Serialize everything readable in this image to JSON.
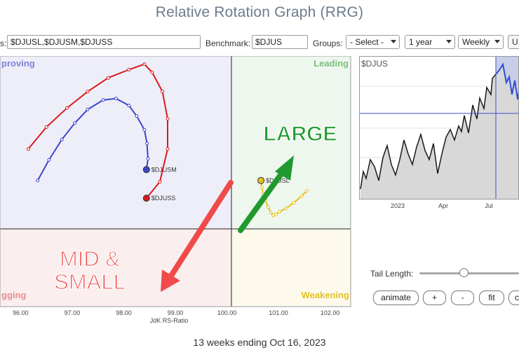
{
  "title": "Relative Rotation Graph (RRG)",
  "toolbar": {
    "symbols_label": "s:",
    "symbols_value": "$DJUSL,$DJUSM,$DJUSS",
    "benchmark_label": "Benchmark:",
    "benchmark_value": "$DJUS",
    "groups_label": "Groups:",
    "groups_value": "- Select -",
    "period_value": "1 year",
    "frequency_value": "Weekly",
    "update_partial": "U"
  },
  "rrg": {
    "quadrants": {
      "improving": "proving",
      "leading": "Leading",
      "weakening": "Weakening",
      "lagging": "gging"
    },
    "x_ticks": [
      "96.00",
      "97.00",
      "98.00",
      "99.00",
      "100.00",
      "101.00",
      "102.00"
    ],
    "x_axis_label": "JdK RS-Ratio",
    "annotations": {
      "large": "LARGE",
      "mid_small_line1": "MID &",
      "mid_small_line2": "SMALL"
    },
    "colors": {
      "djusl": "#e6c21f",
      "djusm": "#3d47c9",
      "djuss": "#d81b1b",
      "arrow_green": "#1f9a2e",
      "arrow_red": "#f04a4a"
    }
  },
  "chart_data": {
    "type": "scatter",
    "title": "",
    "xlabel": "JdK RS-Ratio",
    "ylabel": "",
    "xlim": [
      95.6,
      102.4
    ],
    "ylim": [
      95.45,
      103.7
    ],
    "grid": false,
    "series": [
      {
        "name": "$DJUSL",
        "x": [
          101.55,
          101.45,
          101.3,
          101.15,
          101.02,
          100.95,
          100.9,
          100.85,
          100.8,
          100.75,
          100.7,
          100.68,
          100.66
        ],
        "y": [
          99.26,
          99.09,
          98.87,
          98.69,
          98.57,
          98.49,
          98.45,
          98.55,
          98.73,
          98.93,
          99.15,
          99.38,
          99.6
        ]
      },
      {
        "name": "$DJUSM",
        "x": [
          96.33,
          96.55,
          96.8,
          97.05,
          97.3,
          97.6,
          97.85,
          98.1,
          98.25,
          98.4,
          98.45,
          98.47,
          98.44
        ],
        "y": [
          99.6,
          100.28,
          100.95,
          101.49,
          101.94,
          102.25,
          102.3,
          102.07,
          101.72,
          101.27,
          100.82,
          100.32,
          99.96
        ]
      },
      {
        "name": "$DJUSS",
        "x": [
          96.15,
          96.5,
          96.9,
          97.3,
          97.7,
          98.1,
          98.4,
          98.55,
          98.75,
          98.85,
          98.85,
          98.7,
          98.44
        ],
        "y": [
          100.64,
          101.36,
          101.99,
          102.53,
          102.98,
          103.25,
          103.43,
          103.16,
          102.53,
          101.63,
          100.64,
          99.56,
          99.02
        ]
      }
    ]
  },
  "price_panel": {
    "symbol": "$DJUS",
    "x_ticks": [
      "2023",
      "Apr",
      "Jul"
    ],
    "colors": {
      "line": "#1a1a1a",
      "recent_line": "#2f4fd6",
      "fill": "#d8d8d8",
      "highlight": "#c8cde8",
      "crosshair": "#3a52c9"
    }
  },
  "controls": {
    "tail_length_label": "Tail Length:",
    "tail_length_fraction": 0.42,
    "buttons": [
      "animate",
      "+",
      "-",
      "fit",
      "c"
    ]
  },
  "footer": "13 weeks ending Oct 16, 2023"
}
